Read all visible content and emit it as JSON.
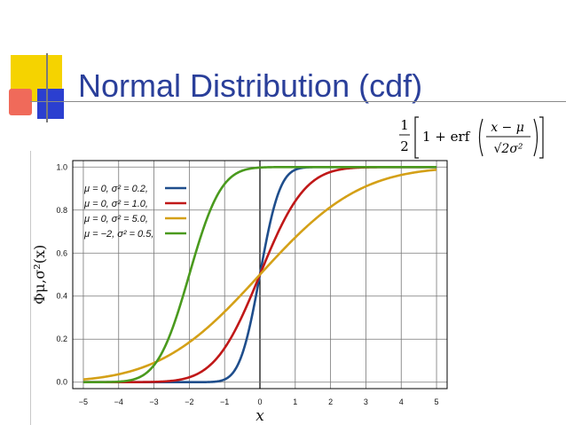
{
  "slide": {
    "title": "Normal Distribution (cdf)",
    "formula": {
      "prefix_num": "1",
      "prefix_den": "2",
      "one_plus": "1 + erf",
      "num": "x − μ",
      "den": "√2σ²"
    },
    "colors": {
      "title": "#2a3f9a",
      "deco_yellow": "#f5d300",
      "deco_red": "#e03020",
      "deco_blue": "#2b3fd0"
    }
  },
  "chart_data": {
    "type": "line",
    "title": "",
    "xlabel": "x",
    "ylabel": "Φμ,σ²(x)",
    "xlim": [
      -5.3,
      5.3
    ],
    "ylim": [
      -0.03,
      1.03
    ],
    "xticks": [
      "−5",
      "−4",
      "−3",
      "−2",
      "−1",
      "0",
      "1",
      "2",
      "3",
      "4",
      "5"
    ],
    "yticks": [
      "0.0",
      "0.2",
      "0.4",
      "0.6",
      "0.8",
      "1.0"
    ],
    "grid": true,
    "legend_position": "top-left",
    "series": [
      {
        "name": "μ = 0,   σ² = 0.2,",
        "mu": 0,
        "var": 0.2,
        "color": "#1f4e8c"
      },
      {
        "name": "μ = 0,   σ² = 1.0,",
        "mu": 0,
        "var": 1.0,
        "color": "#c01818"
      },
      {
        "name": "μ = 0,   σ² = 5.0,",
        "mu": 0,
        "var": 5.0,
        "color": "#d4a017"
      },
      {
        "name": "μ = −2, σ² = 0.5,",
        "mu": -2,
        "var": 0.5,
        "color": "#4a9a1e"
      }
    ]
  }
}
